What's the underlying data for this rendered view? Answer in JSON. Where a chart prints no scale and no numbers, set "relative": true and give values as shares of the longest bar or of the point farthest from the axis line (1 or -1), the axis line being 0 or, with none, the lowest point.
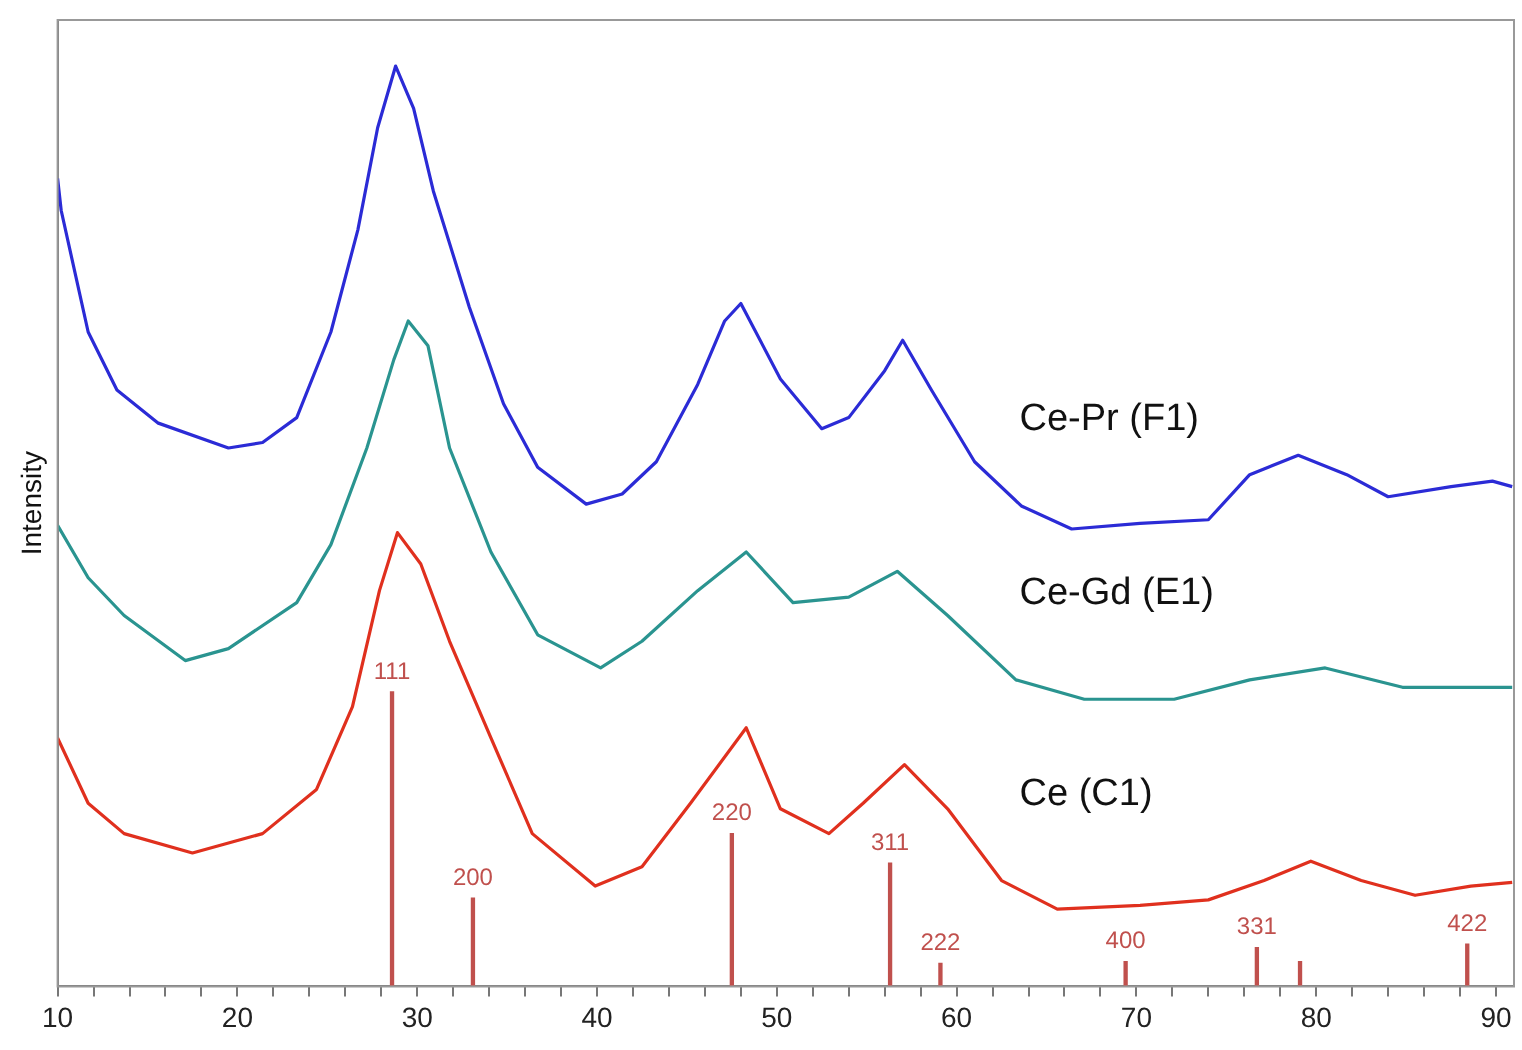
{
  "chart_data": {
    "type": "line",
    "ylabel": "Intensity",
    "relative": true,
    "grid": false,
    "legend": false,
    "marker": "none",
    "line_style": "solid",
    "xlim": [
      10,
      91
    ],
    "xticks": [
      10,
      {
        "value": 12,
        "label": null
      },
      {
        "value": 14,
        "label": null
      },
      {
        "value": 16,
        "label": null
      },
      {
        "value": 18,
        "label": null
      },
      20,
      {
        "value": 22,
        "label": null
      },
      {
        "value": 24,
        "label": null
      },
      {
        "value": 26,
        "label": null
      },
      {
        "value": 28,
        "label": null
      },
      30,
      {
        "value": 32,
        "label": null
      },
      {
        "value": 34,
        "label": null
      },
      {
        "value": 36,
        "label": null
      },
      {
        "value": 38,
        "label": null
      },
      40,
      {
        "value": 42,
        "label": null
      },
      {
        "value": 44,
        "label": null
      },
      {
        "value": 46,
        "label": null
      },
      {
        "value": 48,
        "label": null
      },
      50,
      {
        "value": 52,
        "label": null
      },
      {
        "value": 54,
        "label": null
      },
      {
        "value": 56,
        "label": null
      },
      {
        "value": 58,
        "label": null
      },
      60,
      {
        "value": 62,
        "label": null
      },
      {
        "value": 64,
        "label": null
      },
      {
        "value": 66,
        "label": null
      },
      {
        "value": 68,
        "label": null
      },
      70,
      {
        "value": 72,
        "label": null
      },
      {
        "value": 74,
        "label": null
      },
      {
        "value": 76,
        "label": null
      },
      {
        "value": 78,
        "label": null
      },
      80,
      {
        "value": 82,
        "label": null
      },
      {
        "value": 84,
        "label": null
      },
      {
        "value": 86,
        "label": null
      },
      {
        "value": 88,
        "label": null
      },
      90
    ],
    "series": [
      {
        "name": "Ce-Pr (F1)",
        "color": "#2b2bd6",
        "x": [
          10.0,
          10.2,
          11.7,
          13.3,
          15.6,
          19.5,
          21.4,
          23.3,
          25.2,
          26.7,
          27.8,
          28.8,
          29.8,
          30.9,
          32.9,
          34.8,
          36.7,
          39.4,
          41.4,
          43.3,
          45.6,
          47.1,
          48.0,
          50.2,
          52.5,
          54.0,
          56.0,
          57.0,
          58.6,
          61.0,
          63.6,
          66.4,
          70.2,
          74.0,
          76.3,
          79.0,
          81.7,
          84.0,
          87.5,
          89.8,
          90.9
        ],
        "values": [
          0.878,
          0.843,
          0.711,
          0.648,
          0.612,
          0.585,
          0.591,
          0.618,
          0.711,
          0.822,
          0.933,
          1.0,
          0.954,
          0.864,
          0.738,
          0.633,
          0.564,
          0.524,
          0.535,
          0.57,
          0.654,
          0.723,
          0.742,
          0.66,
          0.606,
          0.618,
          0.669,
          0.702,
          0.648,
          0.57,
          0.522,
          0.497,
          0.503,
          0.507,
          0.556,
          0.577,
          0.556,
          0.532,
          0.543,
          0.549,
          0.543
        ]
      },
      {
        "name": "Ce-Gd (E1)",
        "color": "#2a9490",
        "x": [
          10.0,
          11.7,
          13.7,
          17.1,
          19.5,
          23.3,
          25.2,
          27.2,
          28.7,
          29.5,
          30.6,
          31.8,
          34.1,
          36.7,
          40.2,
          42.5,
          45.6,
          48.3,
          50.9,
          54.0,
          56.7,
          59.5,
          63.3,
          67.1,
          72.1,
          76.3,
          80.5,
          84.8,
          90.9
        ],
        "values": [
          0.501,
          0.444,
          0.403,
          0.354,
          0.367,
          0.417,
          0.48,
          0.585,
          0.681,
          0.723,
          0.696,
          0.585,
          0.472,
          0.382,
          0.346,
          0.375,
          0.43,
          0.472,
          0.417,
          0.423,
          0.451,
          0.403,
          0.333,
          0.312,
          0.312,
          0.333,
          0.346,
          0.325,
          0.325
        ]
      },
      {
        "name": "Ce (C1)",
        "color": "#e0301e",
        "x": [
          10.0,
          11.7,
          13.7,
          17.5,
          21.4,
          24.4,
          26.4,
          27.9,
          28.9,
          30.2,
          31.8,
          34.1,
          36.4,
          39.9,
          42.5,
          45.2,
          48.3,
          50.2,
          52.9,
          54.8,
          57.1,
          59.5,
          62.5,
          65.6,
          70.2,
          74.0,
          77.1,
          79.7,
          82.5,
          85.5,
          88.6,
          90.9
        ],
        "values": [
          0.27,
          0.199,
          0.166,
          0.145,
          0.166,
          0.214,
          0.304,
          0.43,
          0.493,
          0.459,
          0.375,
          0.27,
          0.166,
          0.109,
          0.13,
          0.199,
          0.281,
          0.193,
          0.166,
          0.199,
          0.241,
          0.193,
          0.115,
          0.084,
          0.088,
          0.094,
          0.115,
          0.136,
          0.115,
          0.099,
          0.109,
          0.113
        ]
      },
      {
        "type": "bar",
        "color": "#c0504d",
        "x": [
          28.6,
          33.1,
          47.5,
          56.3,
          59.1,
          69.4,
          76.7,
          79.1,
          88.4
        ],
        "values": [
          0.32,
          0.096,
          0.166,
          0.134,
          0.025,
          0.027,
          0.042,
          0.027,
          0.046
        ]
      }
    ],
    "annotations": [
      {
        "text": "111",
        "x": 28.6,
        "y": 0.32
      },
      {
        "text": "200",
        "x": 33.1,
        "y": 0.096
      },
      {
        "text": "220",
        "x": 47.5,
        "y": 0.166
      },
      {
        "text": "311",
        "x": 56.3,
        "y": 0.134
      },
      {
        "text": "222",
        "x": 59.1,
        "y": 0.025
      },
      {
        "text": "400",
        "x": 69.4,
        "y": 0.027
      },
      {
        "text": "331",
        "x": 76.7,
        "y": 0.042
      },
      {
        "text": "422",
        "x": 88.4,
        "y": 0.046
      }
    ]
  }
}
